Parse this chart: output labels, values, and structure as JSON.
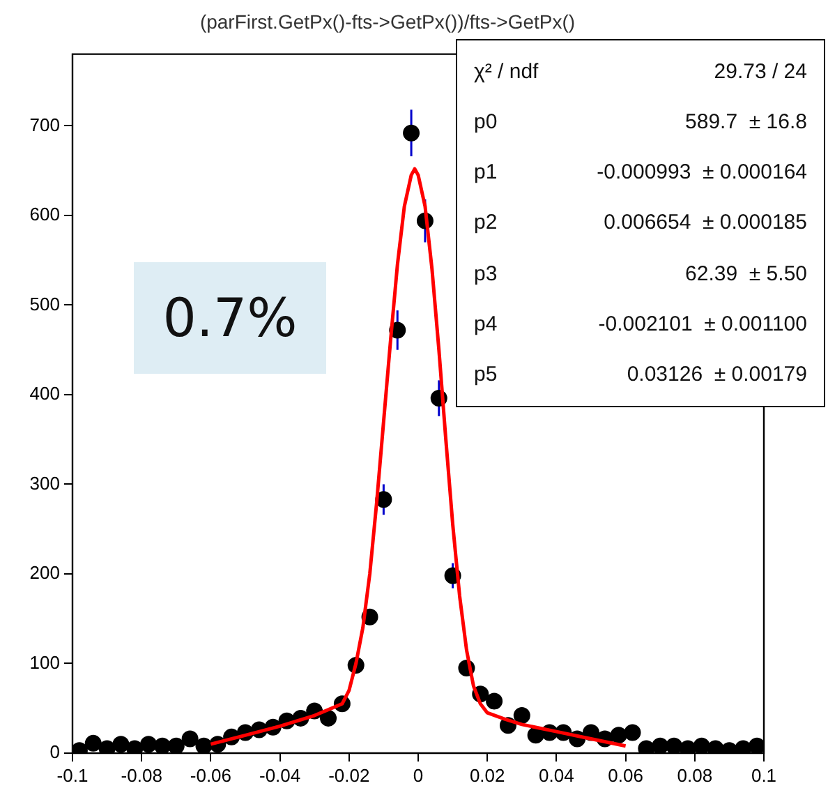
{
  "chart_data": {
    "type": "scatter",
    "title": "(parFirst.GetPx()-fts->GetPx())/fts->GetPx()",
    "xlim": [
      -0.1,
      0.1
    ],
    "xticks": [
      -0.1,
      -0.08,
      -0.06,
      -0.04,
      -0.02,
      0,
      0.02,
      0.04,
      0.06,
      0.08,
      0.1
    ],
    "ylim": [
      0,
      780
    ],
    "yticks": [
      0,
      100,
      200,
      300,
      400,
      500,
      600,
      700
    ],
    "grid": false,
    "legend": false,
    "marker": "circle",
    "annotations": [
      "0.7%",
      "χ² / ndf",
      "29.73 / 24",
      "p0",
      "589.7  ± 16.8",
      "p1",
      "-0.000993  ± 0.000164",
      "p2",
      "0.006654  ± 0.000185",
      "p3",
      "62.39  ± 5.50",
      "p4",
      "-0.002101  ± 0.001100",
      "p5",
      "0.03126  ± 0.00179"
    ],
    "series": [
      {
        "type": "scatter",
        "color": "#000000",
        "x": [
          -0.098,
          -0.094,
          -0.09,
          -0.086,
          -0.082,
          -0.078,
          -0.074,
          -0.07,
          -0.066,
          -0.062,
          -0.058,
          -0.054,
          -0.05,
          -0.046,
          -0.042,
          -0.038,
          -0.034,
          -0.03,
          -0.026,
          -0.022,
          -0.018,
          -0.014,
          -0.01,
          -0.006,
          -0.002,
          0.002,
          0.006,
          0.01,
          0.014,
          0.018,
          0.022,
          0.026,
          0.03,
          0.034,
          0.038,
          0.042,
          0.046,
          0.05,
          0.054,
          0.058,
          0.062,
          0.066,
          0.07,
          0.074,
          0.078,
          0.082,
          0.086,
          0.09,
          0.094,
          0.098
        ],
        "values": [
          3,
          11,
          5,
          10,
          5,
          10,
          8,
          8,
          16,
          8,
          10,
          18,
          23,
          26,
          29,
          36,
          39,
          47,
          39,
          55,
          98,
          152,
          283,
          472,
          692,
          594,
          396,
          198,
          95,
          66,
          58,
          31,
          42,
          20,
          23,
          23,
          16,
          23,
          16,
          20,
          23,
          5,
          8,
          8,
          5,
          8,
          5,
          3,
          5,
          8
        ],
        "errors": [
          null,
          null,
          null,
          null,
          null,
          null,
          null,
          null,
          null,
          null,
          null,
          null,
          null,
          null,
          null,
          null,
          null,
          null,
          null,
          null,
          null,
          null,
          17,
          22,
          26,
          24,
          20,
          14,
          null,
          null,
          null,
          null,
          null,
          null,
          null,
          null,
          null,
          null,
          null,
          null,
          null,
          null,
          null,
          null,
          null,
          null,
          null,
          null,
          null,
          null
        ]
      },
      {
        "type": "line",
        "color": "#ff0000",
        "marker": "none",
        "x": [
          -0.06,
          -0.05,
          -0.04,
          -0.03,
          -0.022,
          -0.02,
          -0.018,
          -0.016,
          -0.014,
          -0.012,
          -0.01,
          -0.008,
          -0.006,
          -0.004,
          -0.002,
          -0.001,
          0,
          0.002,
          0.004,
          0.006,
          0.008,
          0.01,
          0.012,
          0.014,
          0.016,
          0.018,
          0.02,
          0.025,
          0.03,
          0.04,
          0.05,
          0.06
        ],
        "values": [
          10,
          20,
          30,
          42,
          55,
          70,
          100,
          140,
          200,
          280,
          370,
          460,
          545,
          610,
          645,
          652,
          645,
          610,
          540,
          450,
          350,
          255,
          175,
          115,
          75,
          55,
          45,
          38,
          32,
          24,
          16,
          8
        ]
      }
    ]
  }
}
